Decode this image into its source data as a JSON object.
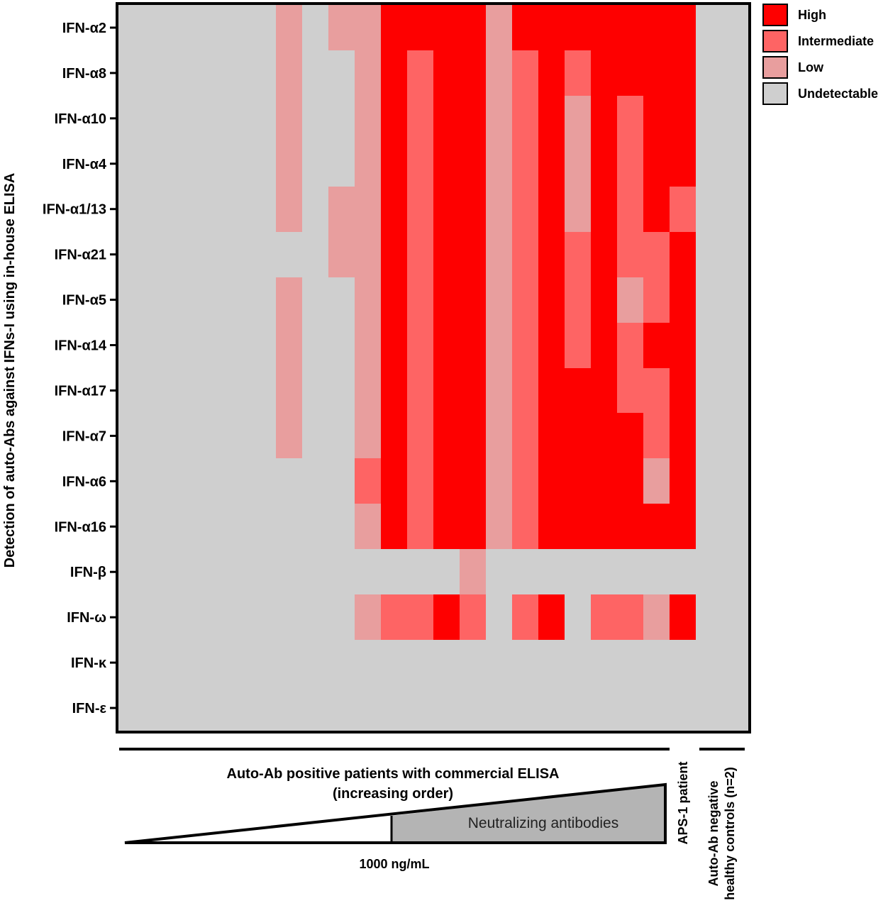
{
  "chart_data": {
    "type": "heatmap",
    "ylabel": "Detection of auto-Abs against IFNs-I using in-house ELISA",
    "rows": [
      "IFN-α2",
      "IFN-α8",
      "IFN-α10",
      "IFN-α4",
      "IFN-α1/13",
      "IFN-α21",
      "IFN-α5",
      "IFN-α14",
      "IFN-α17",
      "IFN-α7",
      "IFN-α6",
      "IFN-α16",
      "IFN-β",
      "IFN-ω",
      "IFN-κ",
      "IFN-ε"
    ],
    "levels": [
      "Undetectable",
      "Low",
      "Intermediate",
      "High"
    ],
    "legend": {
      "position": "top-right",
      "entries": [
        {
          "label": "High",
          "color": "#fe0000"
        },
        {
          "label": "Intermediate",
          "color": "#fe6464"
        },
        {
          "label": "Low",
          "color": "#e89e9e"
        },
        {
          "label": "Undetectable",
          "color": "#cfcfcf"
        }
      ]
    },
    "colors": [
      "#cfcfcf",
      "#e89e9e",
      "#fe6464",
      "#fe0000"
    ],
    "matrix": [
      [
        0,
        0,
        0,
        0,
        0,
        0,
        1,
        0,
        1,
        1,
        3,
        3,
        3,
        3,
        1,
        3,
        3,
        3,
        3,
        3,
        3,
        3,
        0,
        0
      ],
      [
        0,
        0,
        0,
        0,
        0,
        0,
        1,
        0,
        0,
        1,
        3,
        2,
        3,
        3,
        1,
        2,
        3,
        2,
        3,
        3,
        3,
        3,
        0,
        0
      ],
      [
        0,
        0,
        0,
        0,
        0,
        0,
        1,
        0,
        0,
        1,
        3,
        2,
        3,
        3,
        1,
        2,
        3,
        1,
        3,
        2,
        3,
        3,
        0,
        0
      ],
      [
        0,
        0,
        0,
        0,
        0,
        0,
        1,
        0,
        0,
        1,
        3,
        2,
        3,
        3,
        1,
        2,
        3,
        1,
        3,
        2,
        3,
        3,
        0,
        0
      ],
      [
        0,
        0,
        0,
        0,
        0,
        0,
        1,
        0,
        1,
        1,
        3,
        2,
        3,
        3,
        1,
        2,
        3,
        1,
        3,
        2,
        3,
        2,
        0,
        0
      ],
      [
        0,
        0,
        0,
        0,
        0,
        0,
        0,
        0,
        1,
        1,
        3,
        2,
        3,
        3,
        1,
        2,
        3,
        2,
        3,
        2,
        2,
        3,
        0,
        0
      ],
      [
        0,
        0,
        0,
        0,
        0,
        0,
        1,
        0,
        0,
        1,
        3,
        2,
        3,
        3,
        1,
        2,
        3,
        2,
        3,
        1,
        2,
        3,
        0,
        0
      ],
      [
        0,
        0,
        0,
        0,
        0,
        0,
        1,
        0,
        0,
        1,
        3,
        2,
        3,
        3,
        1,
        2,
        3,
        2,
        3,
        2,
        3,
        3,
        0,
        0
      ],
      [
        0,
        0,
        0,
        0,
        0,
        0,
        1,
        0,
        0,
        1,
        3,
        2,
        3,
        3,
        1,
        2,
        3,
        3,
        3,
        2,
        2,
        3,
        0,
        0
      ],
      [
        0,
        0,
        0,
        0,
        0,
        0,
        1,
        0,
        0,
        1,
        3,
        2,
        3,
        3,
        1,
        2,
        3,
        3,
        3,
        3,
        2,
        3,
        0,
        0
      ],
      [
        0,
        0,
        0,
        0,
        0,
        0,
        0,
        0,
        0,
        2,
        3,
        2,
        3,
        3,
        1,
        2,
        3,
        3,
        3,
        3,
        1,
        3,
        0,
        0
      ],
      [
        0,
        0,
        0,
        0,
        0,
        0,
        0,
        0,
        0,
        1,
        3,
        2,
        3,
        3,
        1,
        2,
        3,
        3,
        3,
        3,
        3,
        3,
        0,
        0
      ],
      [
        0,
        0,
        0,
        0,
        0,
        0,
        0,
        0,
        0,
        0,
        0,
        0,
        0,
        1,
        0,
        0,
        0,
        0,
        0,
        0,
        0,
        0,
        0,
        0
      ],
      [
        0,
        0,
        0,
        0,
        0,
        0,
        0,
        0,
        0,
        1,
        2,
        2,
        3,
        2,
        0,
        2,
        3,
        0,
        2,
        2,
        1,
        3,
        0,
        0
      ],
      [
        0,
        0,
        0,
        0,
        0,
        0,
        0,
        0,
        0,
        0,
        0,
        0,
        0,
        0,
        0,
        0,
        0,
        0,
        0,
        0,
        0,
        0,
        0,
        0
      ],
      [
        0,
        0,
        0,
        0,
        0,
        0,
        0,
        0,
        0,
        0,
        0,
        0,
        0,
        0,
        0,
        0,
        0,
        0,
        0,
        0,
        0,
        0,
        0,
        0
      ]
    ],
    "groups": {
      "patients": {
        "label_line1": "Auto-Ab positive patients with commercial ELISA",
        "label_line2": "(increasing order)"
      },
      "aps1": {
        "label": "APS-1 patient"
      },
      "controls": {
        "label_line1": "Auto-Ab negative",
        "label_line2": "healthy controls (n=2)"
      }
    },
    "threshold_label": "1000 ng/mL",
    "neutralizing_label": "Neutralizing antibodies"
  }
}
